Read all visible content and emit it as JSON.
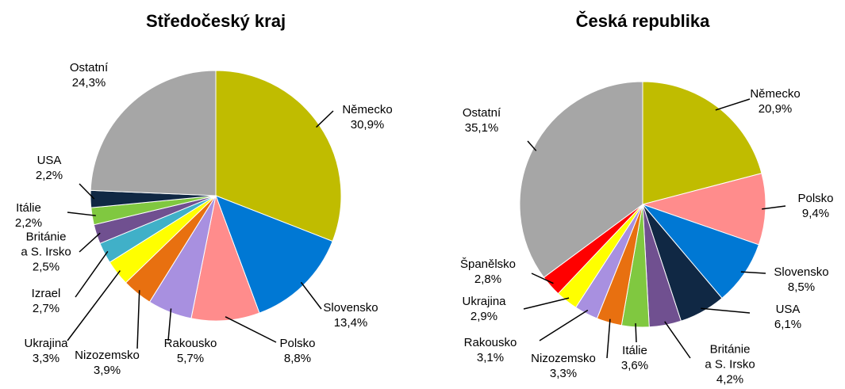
{
  "chart_data": [
    {
      "type": "pie",
      "title": "Středočeský kraj",
      "categories": [
        "Německo",
        "Slovensko",
        "Polsko",
        "Rakousko",
        "Nizozemsko",
        "Ukrajina",
        "Izrael",
        "Británie\na S. Irsko",
        "Itálie",
        "USA",
        "Ostatní"
      ],
      "values": [
        30.9,
        13.4,
        8.8,
        5.7,
        3.9,
        3.3,
        2.7,
        2.5,
        2.2,
        2.2,
        24.3
      ],
      "value_labels": [
        "30,9%",
        "13,4%",
        "8,8%",
        "5,7%",
        "3,9%",
        "3,3%",
        "2,7%",
        "2,5%",
        "2,2%",
        "2,2%",
        "24,3%"
      ],
      "colors": [
        "#c0bc00",
        "#0078d4",
        "#ff8c8c",
        "#a890e0",
        "#e87010",
        "#ffff00",
        "#40b0c8",
        "#705090",
        "#80c840",
        "#102844",
        "#a6a6a6"
      ]
    },
    {
      "type": "pie",
      "title": "Česká republika",
      "categories": [
        "Německo",
        "Polsko",
        "Slovensko",
        "USA",
        "Británie\na S. Irsko",
        "Itálie",
        "Nizozemsko",
        "Rakousko",
        "Ukrajina",
        "Španělsko",
        "Ostatní"
      ],
      "values": [
        20.9,
        9.4,
        8.5,
        6.1,
        4.2,
        3.6,
        3.3,
        3.1,
        2.9,
        2.8,
        35.1
      ],
      "value_labels": [
        "20,9%",
        "9,4%",
        "8,5%",
        "6,1%",
        "4,2%",
        "3,6%",
        "3,3%",
        "3,1%",
        "2,9%",
        "2,8%",
        "35,1%"
      ],
      "colors": [
        "#c0bc00",
        "#ff8c8c",
        "#0078d4",
        "#102844",
        "#705090",
        "#80c840",
        "#e87010",
        "#a890e0",
        "#ffff00",
        "#ff0000",
        "#a6a6a6"
      ]
    }
  ]
}
